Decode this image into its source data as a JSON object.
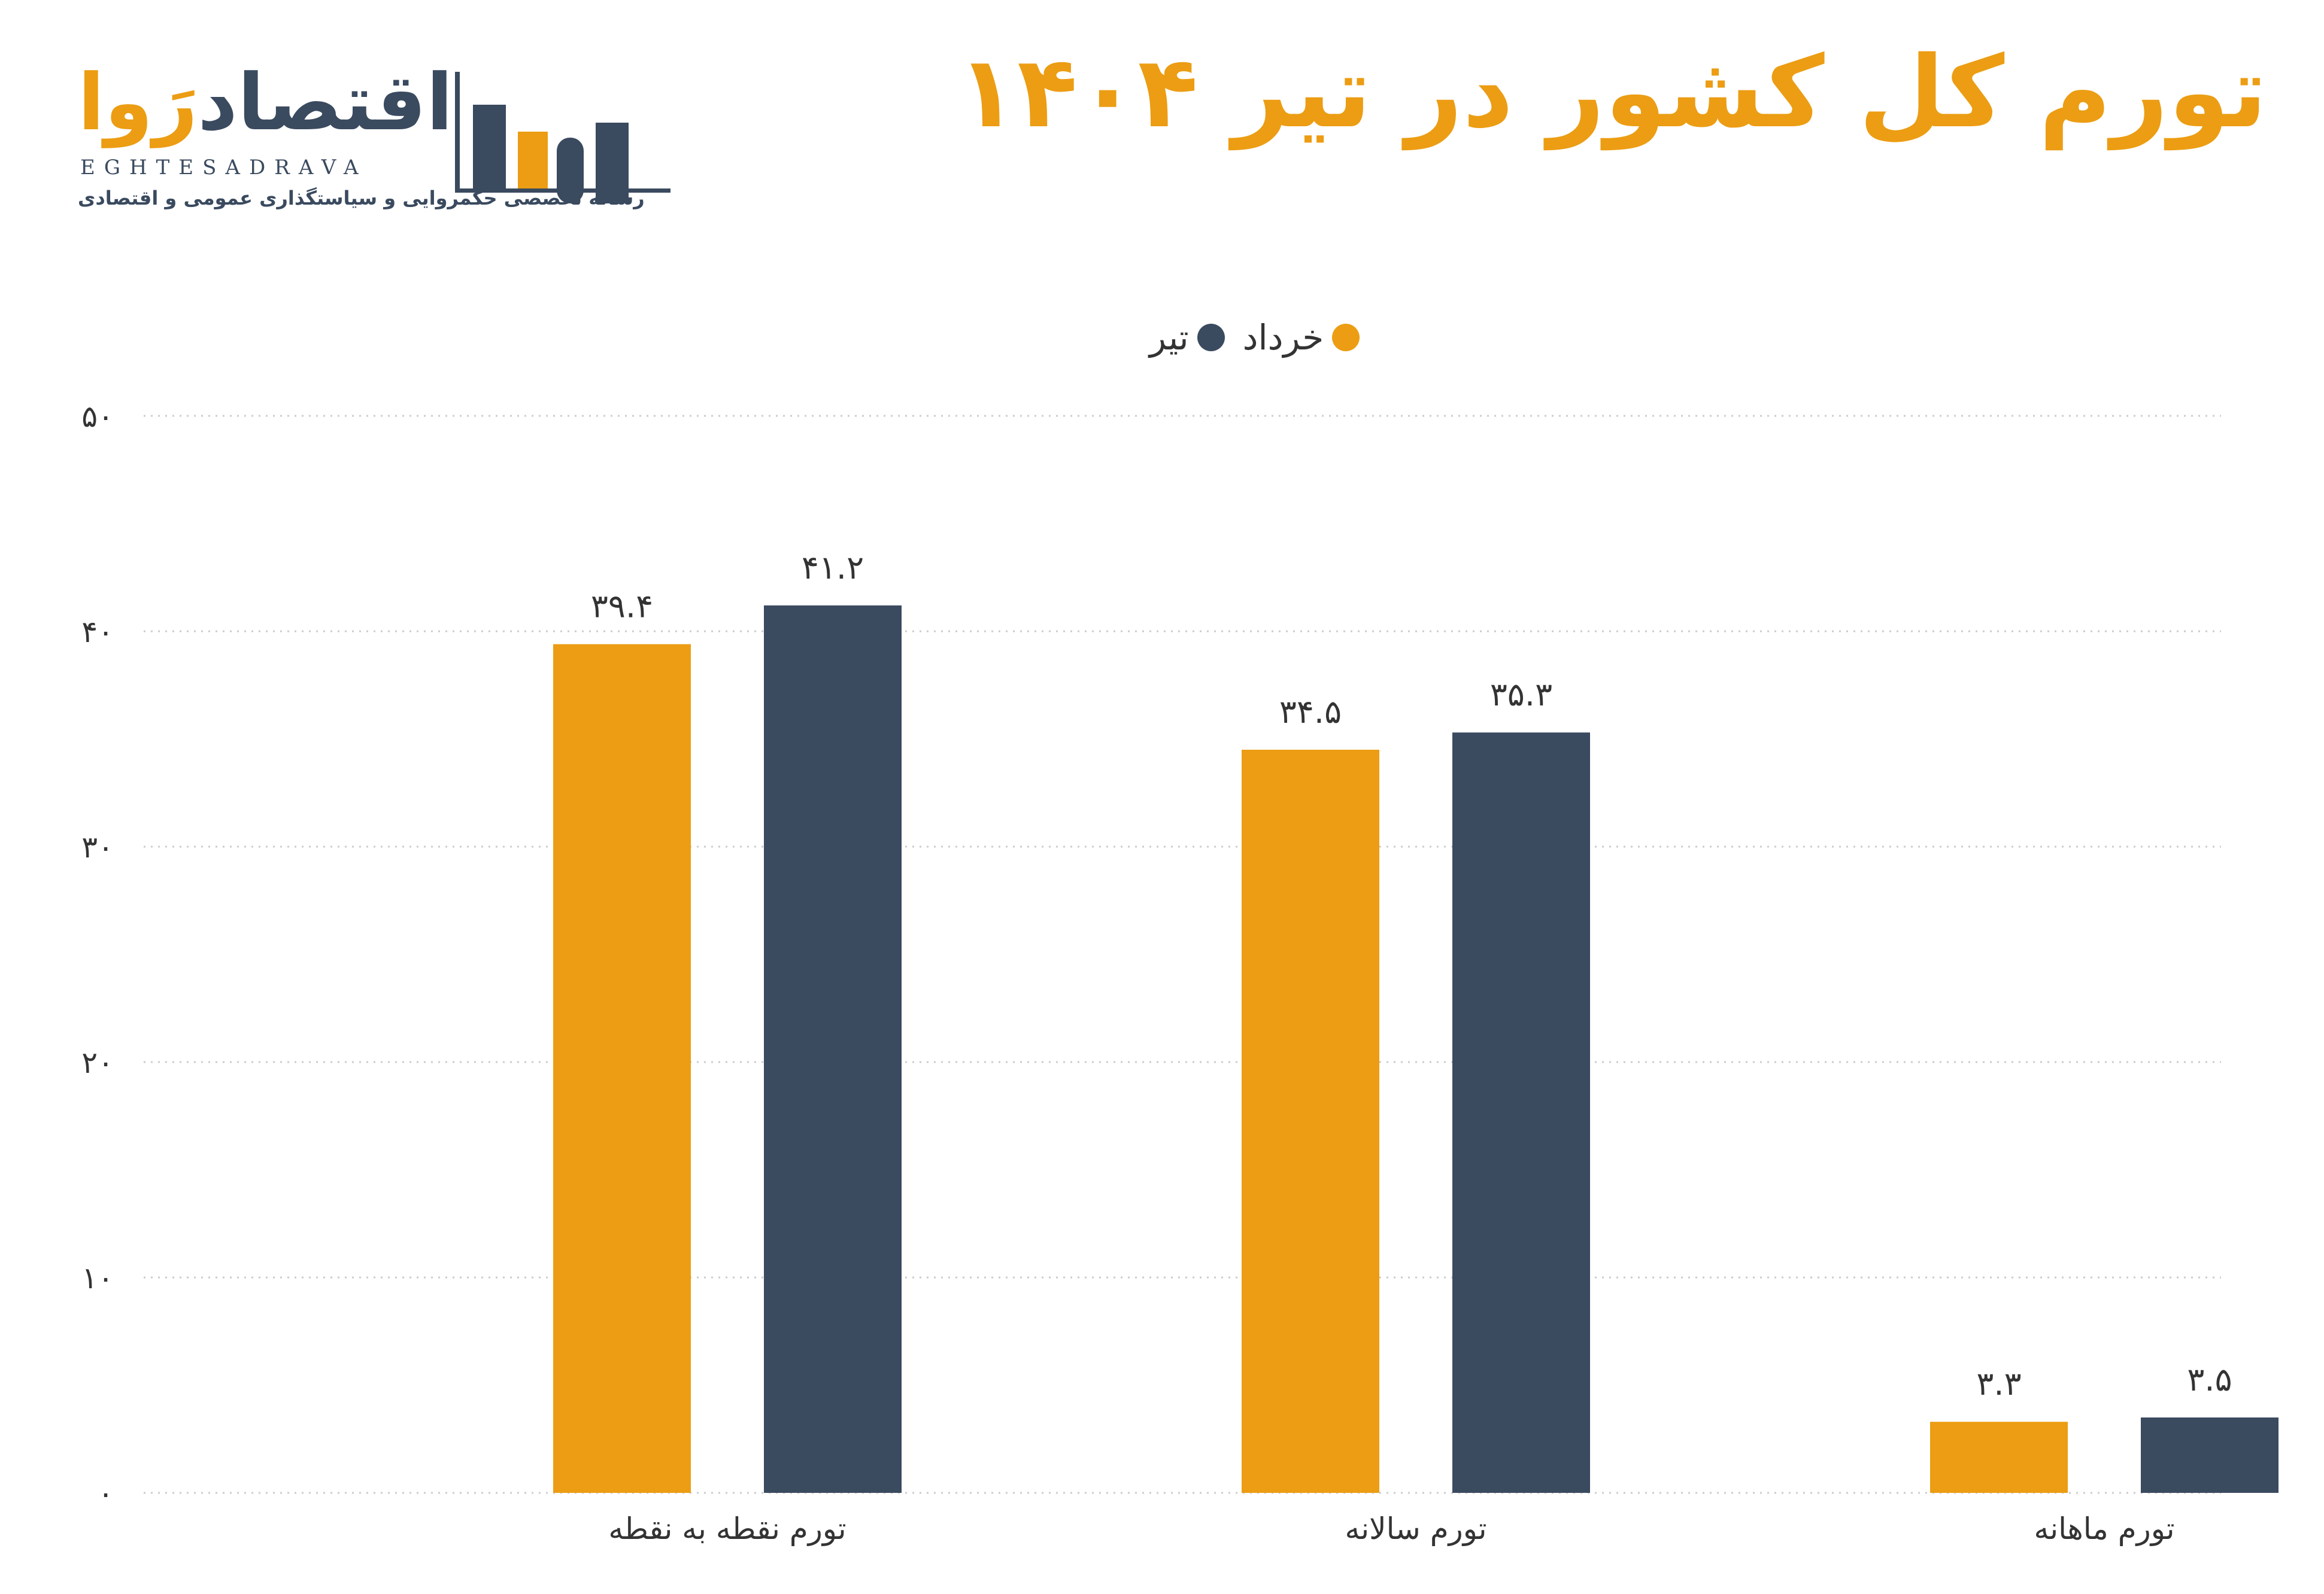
{
  "header": {
    "title": "تورم کل کشور در تیر ۱۴۰۴"
  },
  "logo": {
    "word_a": "اقتصاد",
    "word_b": "رَوا",
    "latin": "EGHTESADRAVA",
    "tagline": "رسانه تخصصی حکمروایی و سیاستگذاری عمومی و اقتصادی"
  },
  "colors": {
    "khordad": "#EC9D13",
    "tir": "#3A4A5F",
    "grid": "#CCCCCC"
  },
  "chart_data": {
    "type": "bar",
    "categories": [
      "تورم نقطه به نقطه",
      "تورم سالانه",
      "تورم ماهانه"
    ],
    "series": [
      {
        "name": "خرداد",
        "values": [
          39.4,
          34.5,
          3.3
        ],
        "labels": [
          "۳۹.۴",
          "۳۴.۵",
          "۳.۳"
        ],
        "color": "#EC9D13"
      },
      {
        "name": "تیر",
        "values": [
          41.2,
          35.3,
          3.5
        ],
        "labels": [
          "۴۱.۲",
          "۳۵.۳",
          "۳.۵"
        ],
        "color": "#3A4A5F"
      }
    ],
    "ylim": [
      0,
      50
    ],
    "yticks": [
      0,
      10,
      20,
      30,
      40,
      50
    ],
    "ytick_labels": [
      "۰",
      "۱۰",
      "۲۰",
      "۳۰",
      "۴۰",
      "۵۰"
    ],
    "grid": true,
    "legend_position": "top-center"
  }
}
